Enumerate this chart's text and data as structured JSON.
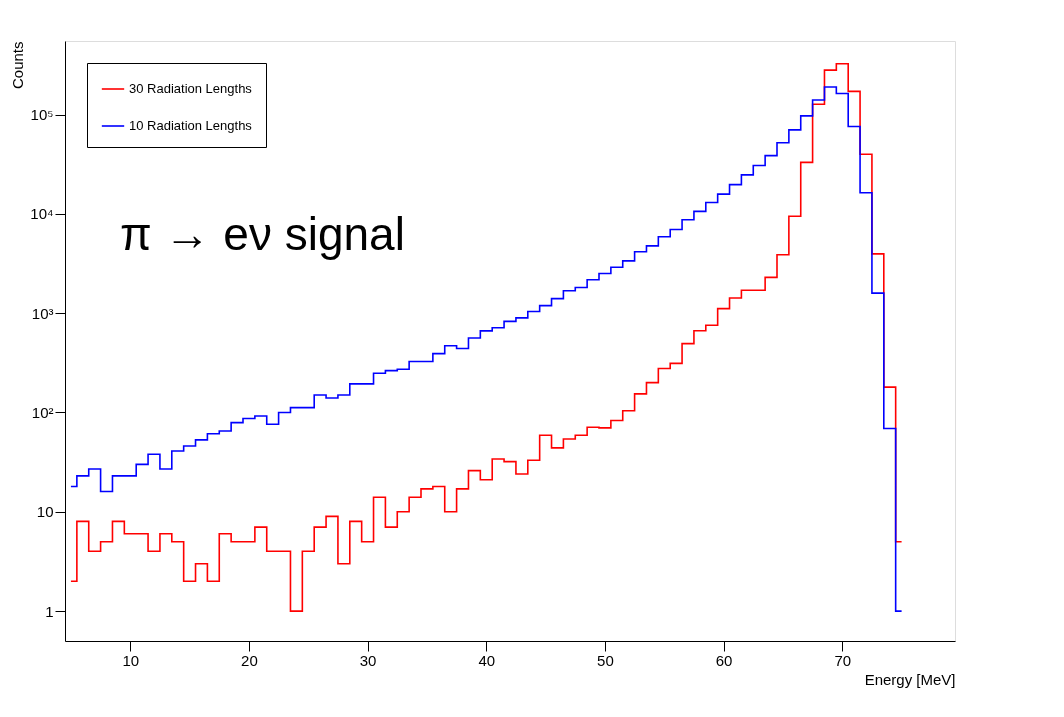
{
  "chart_data": {
    "type": "step",
    "xlabel": "Energy [MeV]",
    "ylabel": "Counts",
    "annotations": [
      "π → eν signal"
    ],
    "x": [
      5,
      6,
      7,
      8,
      9,
      10,
      11,
      12,
      13,
      14,
      15,
      16,
      17,
      18,
      19,
      20,
      21,
      22,
      23,
      24,
      25,
      26,
      27,
      28,
      29,
      30,
      31,
      32,
      33,
      34,
      35,
      36,
      37,
      38,
      39,
      40,
      41,
      42,
      43,
      44,
      45,
      46,
      47,
      48,
      49,
      50,
      51,
      52,
      53,
      54,
      55,
      56,
      57,
      58,
      59,
      60,
      61,
      62,
      63,
      64,
      65,
      66,
      67,
      68,
      69,
      70,
      71,
      72,
      73,
      74,
      75
    ],
    "series": [
      {
        "name": "30 Radiation Lengths",
        "color": "#ff0000",
        "values": [
          2,
          8,
          4,
          5,
          8,
          6,
          6,
          4,
          6,
          5,
          2,
          3,
          2,
          6,
          5,
          5,
          7,
          4,
          4,
          1,
          4,
          7,
          9,
          3,
          8,
          5,
          14,
          7,
          10,
          14,
          17,
          18,
          10,
          17,
          26,
          21,
          34,
          32,
          24,
          33,
          59,
          44,
          54,
          59,
          71,
          70,
          83,
          104,
          154,
          200,
          277,
          312,
          493,
          664,
          755,
          1110,
          1420,
          1700,
          1700,
          2290,
          3870,
          9460,
          33000,
          127000,
          280000,
          325000,
          171000,
          39800,
          3950,
          180,
          5
        ]
      },
      {
        "name": "10 Radiation Lengths",
        "color": "#0000ff",
        "values": [
          18,
          23,
          27,
          16,
          23,
          23,
          30,
          38,
          27,
          41,
          46,
          53,
          61,
          65,
          79,
          87,
          92,
          76,
          100,
          112,
          112,
          150,
          140,
          150,
          194,
          194,
          248,
          264,
          272,
          326,
          326,
          391,
          469,
          440,
          563,
          663,
          713,
          826,
          896,
          1040,
          1190,
          1400,
          1680,
          1810,
          2170,
          2510,
          2900,
          3360,
          4150,
          4760,
          5870,
          6960,
          8730,
          10600,
          13000,
          15800,
          19700,
          24700,
          30700,
          38600,
          52000,
          70000,
          97000,
          140000,
          189000,
          163000,
          75700,
          16300,
          1590,
          69,
          1
        ]
      }
    ],
    "xlim": [
      4.5,
      79.5
    ],
    "xticks": [
      10,
      20,
      30,
      40,
      50,
      60,
      70
    ],
    "ylim": [
      0.5,
      550000
    ],
    "log": true,
    "yticks": [
      1,
      10,
      {
        "value": 100,
        "label": "10²"
      },
      {
        "value": 1000,
        "label": "10³"
      },
      {
        "value": 10000,
        "label": "10⁴"
      },
      {
        "value": 100000,
        "label": "10⁵"
      }
    ],
    "legend": "top left",
    "grid": false
  }
}
